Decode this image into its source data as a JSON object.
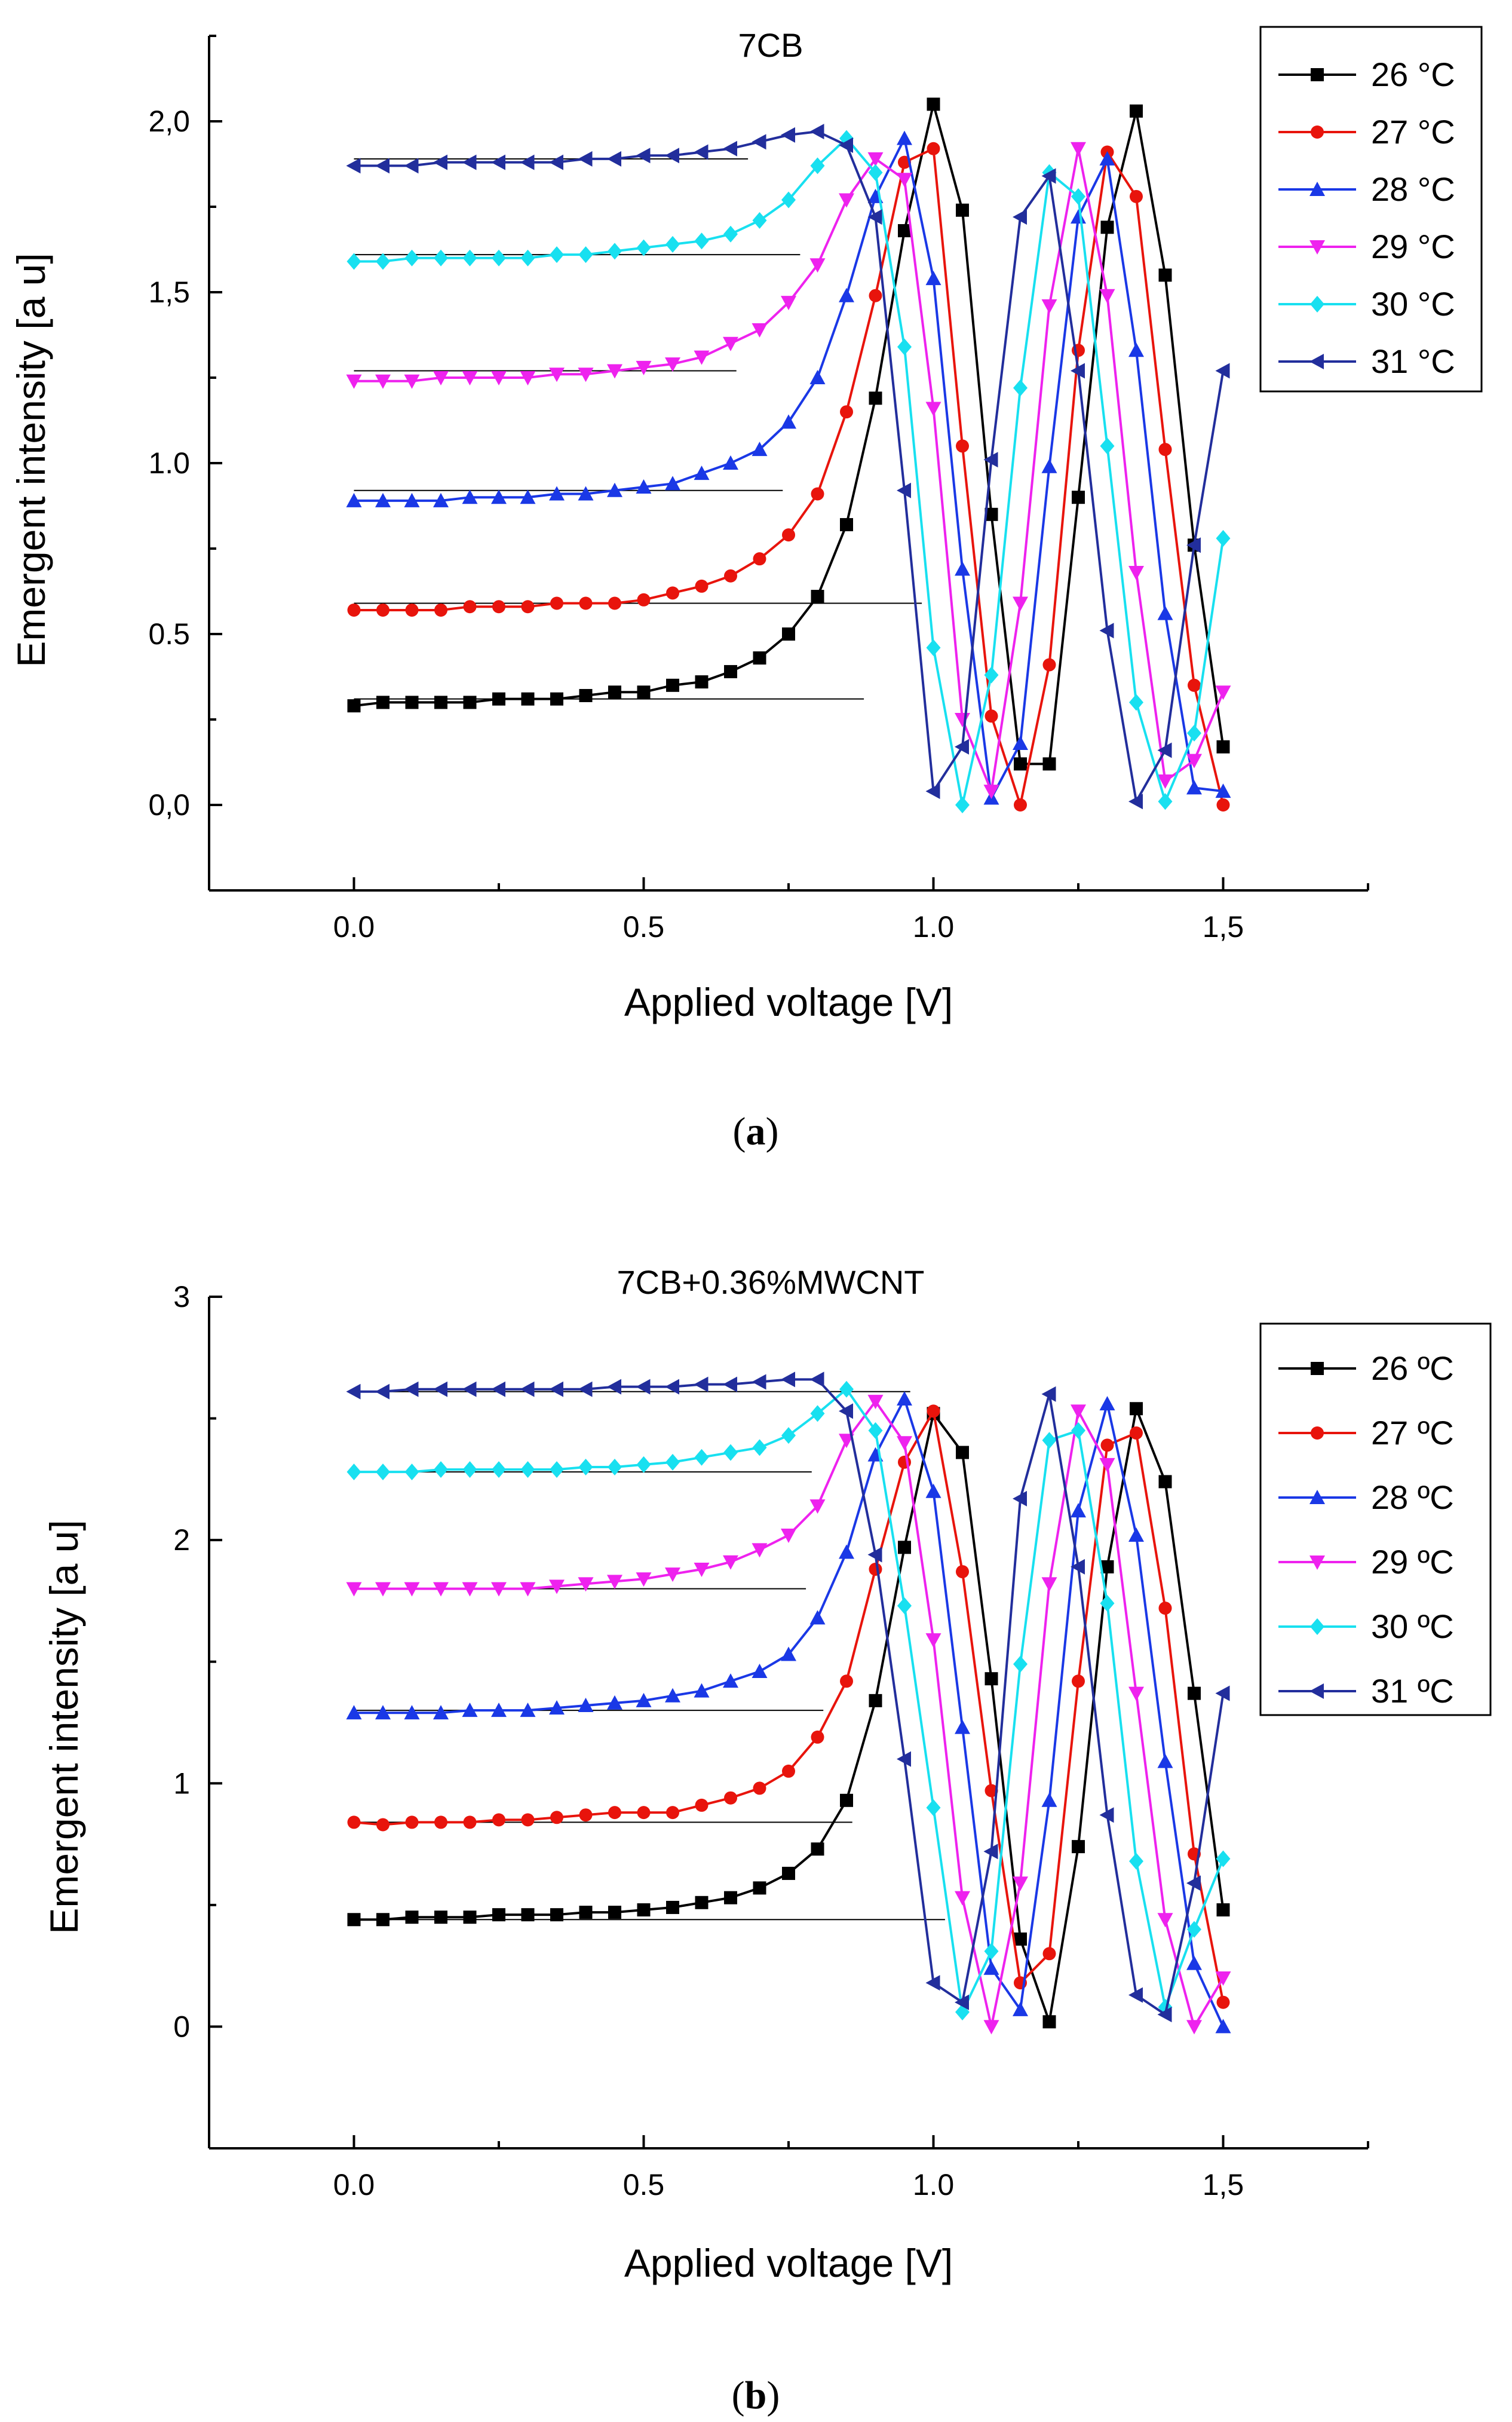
{
  "chart_data": [
    {
      "type": "line",
      "title": "7CB",
      "caption": {
        "prefix": "(",
        "letter": "a",
        "suffix": ")"
      },
      "xlabel": "Applied voltage [V]",
      "ylabel": "Emergent intensity [a u]",
      "xlim": [
        -0.25,
        1.75
      ],
      "ylim": [
        -0.25,
        2.25
      ],
      "xticks": [
        {
          "v": 0.0,
          "label": "0.0"
        },
        {
          "v": 0.5,
          "label": "0.5"
        },
        {
          "v": 1.0,
          "label": "1.0"
        },
        {
          "v": 1.5,
          "label": "1,5"
        }
      ],
      "yticks": [
        {
          "v": 0.0,
          "label": "0,0"
        },
        {
          "v": 0.5,
          "label": "0.5"
        },
        {
          "v": 1.0,
          "label": "1.0"
        },
        {
          "v": 1.5,
          "label": "1,5"
        },
        {
          "v": 2.0,
          "label": "2,0"
        }
      ],
      "legend_position": "top-right",
      "x": [
        0.0,
        0.05,
        0.1,
        0.15,
        0.2,
        0.25,
        0.3,
        0.35,
        0.4,
        0.45,
        0.5,
        0.55,
        0.6,
        0.65,
        0.7,
        0.75,
        0.8,
        0.85,
        0.9,
        0.95,
        1.0,
        1.05,
        1.1,
        1.15,
        1.2,
        1.25,
        1.3,
        1.35,
        1.4,
        1.45,
        1.5
      ],
      "series": [
        {
          "name": "26 °C",
          "color": "#000000",
          "marker": "square",
          "values": [
            0.29,
            0.3,
            0.3,
            0.3,
            0.3,
            0.31,
            0.31,
            0.31,
            0.32,
            0.33,
            0.33,
            0.35,
            0.36,
            0.39,
            0.43,
            0.5,
            0.61,
            0.82,
            1.19,
            1.68,
            2.05,
            1.74,
            0.85,
            0.12,
            0.12,
            0.9,
            1.69,
            2.03,
            1.55,
            0.76,
            0.17
          ],
          "baseline": {
            "y": 0.31,
            "x_end": 0.88
          }
        },
        {
          "name": "27 °C",
          "color": "#e8140c",
          "marker": "circle",
          "values": [
            0.57,
            0.57,
            0.57,
            0.57,
            0.58,
            0.58,
            0.58,
            0.59,
            0.59,
            0.59,
            0.6,
            0.62,
            0.64,
            0.67,
            0.72,
            0.79,
            0.91,
            1.15,
            1.49,
            1.88,
            1.92,
            1.05,
            0.26,
            0.0,
            0.41,
            1.33,
            1.91,
            1.78,
            1.04,
            0.35,
            0.0
          ],
          "baseline": {
            "y": 0.59,
            "x_end": 0.98
          }
        },
        {
          "name": "28 °C",
          "color": "#1a38e6",
          "marker": "triangle-up",
          "values": [
            0.89,
            0.89,
            0.89,
            0.89,
            0.9,
            0.9,
            0.9,
            0.91,
            0.91,
            0.92,
            0.93,
            0.94,
            0.97,
            1.0,
            1.04,
            1.12,
            1.25,
            1.49,
            1.78,
            1.95,
            1.54,
            0.69,
            0.02,
            0.18,
            0.99,
            1.72,
            1.89,
            1.33,
            0.56,
            0.05,
            0.04
          ],
          "baseline": {
            "y": 0.92,
            "x_end": 0.74
          }
        },
        {
          "name": "29 °C",
          "color": "#ee22ee",
          "marker": "triangle-down",
          "values": [
            1.24,
            1.24,
            1.24,
            1.25,
            1.25,
            1.25,
            1.25,
            1.26,
            1.26,
            1.27,
            1.28,
            1.29,
            1.31,
            1.35,
            1.39,
            1.47,
            1.58,
            1.77,
            1.89,
            1.83,
            1.16,
            0.25,
            0.04,
            0.59,
            1.46,
            1.92,
            1.49,
            0.68,
            0.07,
            0.13,
            0.33
          ],
          "baseline": {
            "y": 1.27,
            "x_end": 0.66
          }
        },
        {
          "name": "30 °C",
          "color": "#18e0f0",
          "marker": "diamond",
          "values": [
            1.59,
            1.59,
            1.6,
            1.6,
            1.6,
            1.6,
            1.6,
            1.61,
            1.61,
            1.62,
            1.63,
            1.64,
            1.65,
            1.67,
            1.71,
            1.77,
            1.87,
            1.95,
            1.85,
            1.34,
            0.46,
            0.0,
            0.38,
            1.22,
            1.85,
            1.78,
            1.05,
            0.3,
            0.01,
            0.21,
            0.78
          ],
          "baseline": {
            "y": 1.61,
            "x_end": 0.77
          }
        },
        {
          "name": "31 °C",
          "color": "#222e9c",
          "marker": "triangle-left",
          "values": [
            1.87,
            1.87,
            1.87,
            1.88,
            1.88,
            1.88,
            1.88,
            1.88,
            1.89,
            1.89,
            1.9,
            1.9,
            1.91,
            1.92,
            1.94,
            1.96,
            1.97,
            1.93,
            1.72,
            0.92,
            0.04,
            0.17,
            1.01,
            1.72,
            1.84,
            1.27,
            0.51,
            0.01,
            0.16,
            0.76,
            1.27
          ],
          "baseline": {
            "y": 1.89,
            "x_end": 0.68
          }
        }
      ]
    },
    {
      "type": "line",
      "title": "7CB+0.36%MWCNT",
      "caption": {
        "prefix": "(",
        "letter": "b",
        "suffix": ")"
      },
      "xlabel": "Applied voltage [V]",
      "ylabel": "Emergent intensity [a u]",
      "xlim": [
        -0.25,
        1.75
      ],
      "ylim": [
        -0.5,
        3.0
      ],
      "xticks": [
        {
          "v": 0.0,
          "label": "0.0"
        },
        {
          "v": 0.5,
          "label": "0.5"
        },
        {
          "v": 1.0,
          "label": "1.0"
        },
        {
          "v": 1.5,
          "label": "1,5"
        }
      ],
      "yticks": [
        {
          "v": 0,
          "label": "0"
        },
        {
          "v": 1,
          "label": "1"
        },
        {
          "v": 2,
          "label": "2"
        },
        {
          "v": 3,
          "label": "3"
        }
      ],
      "legend_position": "right",
      "x": [
        0.0,
        0.05,
        0.1,
        0.15,
        0.2,
        0.25,
        0.3,
        0.35,
        0.4,
        0.45,
        0.5,
        0.55,
        0.6,
        0.65,
        0.7,
        0.75,
        0.8,
        0.85,
        0.9,
        0.95,
        1.0,
        1.05,
        1.1,
        1.15,
        1.2,
        1.25,
        1.3,
        1.35,
        1.4,
        1.45,
        1.5
      ],
      "series": [
        {
          "name": "26 ºC",
          "color": "#000000",
          "marker": "square",
          "values": [
            0.44,
            0.44,
            0.45,
            0.45,
            0.45,
            0.46,
            0.46,
            0.46,
            0.47,
            0.47,
            0.48,
            0.49,
            0.51,
            0.53,
            0.57,
            0.63,
            0.73,
            0.93,
            1.34,
            1.97,
            2.52,
            2.36,
            1.43,
            0.36,
            0.02,
            0.74,
            1.89,
            2.54,
            2.24,
            1.37,
            0.48
          ],
          "baseline": {
            "y": 0.44,
            "x_end": 1.02
          }
        },
        {
          "name": "27 ºC",
          "color": "#e8140c",
          "marker": "circle",
          "values": [
            0.84,
            0.83,
            0.84,
            0.84,
            0.84,
            0.85,
            0.85,
            0.86,
            0.87,
            0.88,
            0.88,
            0.88,
            0.91,
            0.94,
            0.98,
            1.05,
            1.19,
            1.42,
            1.88,
            2.32,
            2.53,
            1.87,
            0.97,
            0.18,
            0.3,
            1.42,
            2.39,
            2.44,
            1.72,
            0.71,
            0.1
          ],
          "baseline": {
            "y": 0.84,
            "x_end": 0.86
          }
        },
        {
          "name": "28 ºC",
          "color": "#1a38e6",
          "marker": "triangle-up",
          "values": [
            1.29,
            1.29,
            1.29,
            1.29,
            1.3,
            1.3,
            1.3,
            1.31,
            1.32,
            1.33,
            1.34,
            1.36,
            1.38,
            1.42,
            1.46,
            1.53,
            1.68,
            1.95,
            2.35,
            2.58,
            2.2,
            1.23,
            0.24,
            0.07,
            0.93,
            2.12,
            2.56,
            2.02,
            1.09,
            0.26,
            0.0
          ],
          "baseline": {
            "y": 1.3,
            "x_end": 0.81
          }
        },
        {
          "name": "29 ºC",
          "color": "#ee22ee",
          "marker": "triangle-down",
          "values": [
            1.8,
            1.8,
            1.8,
            1.8,
            1.8,
            1.8,
            1.8,
            1.81,
            1.82,
            1.83,
            1.84,
            1.86,
            1.88,
            1.91,
            1.96,
            2.02,
            2.14,
            2.41,
            2.57,
            2.4,
            1.59,
            0.53,
            0.0,
            0.59,
            1.82,
            2.53,
            2.31,
            1.37,
            0.44,
            0.0,
            0.2
          ],
          "baseline": {
            "y": 1.8,
            "x_end": 0.78
          }
        },
        {
          "name": "30 ºC",
          "color": "#18e0f0",
          "marker": "diamond",
          "values": [
            2.28,
            2.28,
            2.28,
            2.29,
            2.29,
            2.29,
            2.29,
            2.29,
            2.3,
            2.3,
            2.31,
            2.32,
            2.34,
            2.36,
            2.38,
            2.43,
            2.52,
            2.62,
            2.45,
            1.73,
            0.9,
            0.06,
            0.31,
            1.49,
            2.41,
            2.45,
            1.74,
            0.68,
            0.08,
            0.4,
            0.69
          ],
          "baseline": {
            "y": 2.28,
            "x_end": 0.79
          }
        },
        {
          "name": "31 ºC",
          "color": "#222e9c",
          "marker": "triangle-left",
          "values": [
            2.61,
            2.61,
            2.62,
            2.62,
            2.62,
            2.62,
            2.62,
            2.62,
            2.62,
            2.63,
            2.63,
            2.63,
            2.64,
            2.64,
            2.65,
            2.66,
            2.66,
            2.53,
            1.94,
            1.1,
            0.18,
            0.1,
            0.72,
            2.17,
            2.6,
            1.89,
            0.87,
            0.13,
            0.05,
            0.59,
            1.37
          ],
          "baseline": {
            "y": 2.61,
            "x_end": 0.96
          }
        }
      ]
    }
  ]
}
